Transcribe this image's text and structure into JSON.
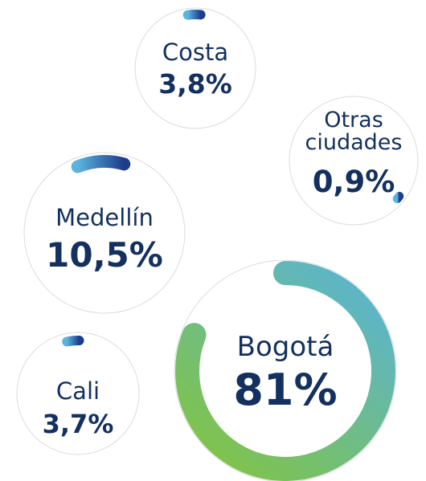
{
  "chart_data": {
    "type": "gauge",
    "categories": [
      "Costa",
      "Otras ciudades",
      "Medellín",
      "Cali",
      "Bogotá"
    ],
    "values": [
      3.8,
      0.9,
      10.5,
      3.7,
      81
    ],
    "value_labels": [
      "3,8%",
      "0,9%",
      "10,5%",
      "3,7%",
      "81%"
    ]
  }
}
